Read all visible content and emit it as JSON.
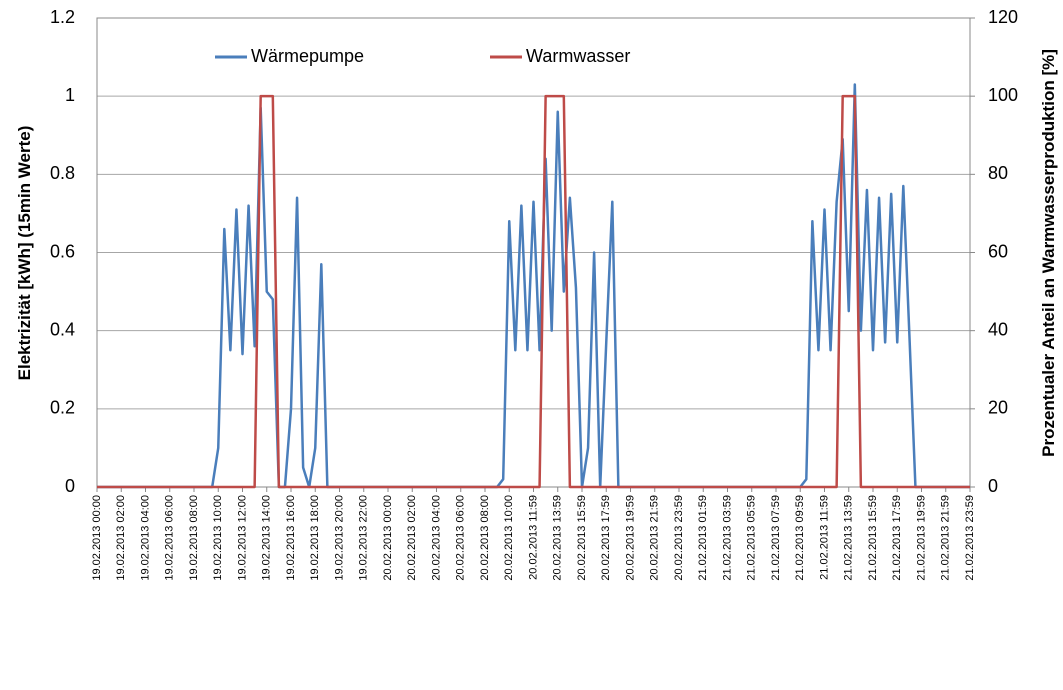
{
  "chart_data": {
    "type": "line",
    "y_label": "Elektrizität    [kWh]  (15min Werte)",
    "y2_label": "Prozentualer Anteil an Warmwasserproduktion   [%]",
    "categories": [
      "19.02.2013 00:00",
      null,
      null,
      null,
      "19.02.2013 02:00",
      null,
      null,
      null,
      "19.02.2013 04:00",
      null,
      null,
      null,
      "19.02.2013 06:00",
      null,
      null,
      null,
      "19.02.2013 08:00",
      null,
      null,
      null,
      "19.02.2013 10:00",
      null,
      null,
      null,
      "19.02.2013 12:00",
      null,
      null,
      null,
      "19.02.2013 14:00",
      null,
      null,
      null,
      "19.02.2013 16:00",
      null,
      null,
      null,
      "19.02.2013 18:00",
      null,
      null,
      null,
      "19.02.2013 20:00",
      null,
      null,
      null,
      "19.02.2013 22:00",
      null,
      null,
      null,
      "20.02.2013 00:00",
      null,
      null,
      null,
      "20.02.2013 02:00",
      null,
      null,
      null,
      "20.02.2013 04:00",
      null,
      null,
      null,
      "20.02.2013 06:00",
      null,
      null,
      null,
      "20.02.2013 08:00",
      null,
      null,
      null,
      "20.02.2013 10:00",
      null,
      null,
      null,
      "20.02.2013 11:59",
      null,
      null,
      null,
      "20.02.2013 13:59",
      null,
      null,
      null,
      "20.02.2013 15:59",
      null,
      null,
      null,
      "20.02.2013 17:59",
      null,
      null,
      null,
      "20.02.2013 19:59",
      null,
      null,
      null,
      "20.02.2013 21:59",
      null,
      null,
      null,
      "20.02.2013 23:59",
      null,
      null,
      null,
      "21.02.2013 01:59",
      null,
      null,
      null,
      "21.02.2013 03:59",
      null,
      null,
      null,
      "21.02.2013 05:59",
      null,
      null,
      null,
      "21.02.2013 07:59",
      null,
      null,
      null,
      "21.02.2013 09:59",
      null,
      null,
      null,
      "21.02.2013 11:59",
      null,
      null,
      null,
      "21.02.2013 13:59",
      null,
      null,
      null,
      "21.02.2013 15:59",
      null,
      null,
      null,
      "21.02.2013 17:59",
      null,
      null,
      null,
      "21.02.2013 19:59",
      null,
      null,
      null,
      "21.02.2013 21:59",
      null,
      null,
      null,
      "21.02.2013 23:59"
    ],
    "series": [
      {
        "name": "Wärmepumpe",
        "color": "#4a7ebb",
        "values": [
          0,
          0,
          0,
          0,
          0,
          0,
          0,
          0,
          0,
          0,
          0,
          0,
          0,
          0,
          0,
          0,
          0,
          0,
          0,
          0,
          0.1,
          0.66,
          0.35,
          0.71,
          0.34,
          0.72,
          0.36,
          0.97,
          0.5,
          0.48,
          0,
          0,
          0.2,
          0.74,
          0.05,
          0,
          0.1,
          0.57,
          0,
          0,
          0,
          0,
          0,
          0,
          0,
          0,
          0,
          0,
          0,
          0,
          0,
          0,
          0,
          0,
          0,
          0,
          0,
          0,
          0,
          0,
          0,
          0,
          0,
          0,
          0,
          0,
          0,
          0.02,
          0.68,
          0.35,
          0.72,
          0.35,
          0.73,
          0.35,
          0.84,
          0.4,
          0.96,
          0.5,
          0.74,
          0.51,
          0,
          0.1,
          0.6,
          0,
          0.37,
          0.73,
          0,
          0,
          0,
          0,
          0,
          0,
          0,
          0,
          0,
          0,
          0,
          0,
          0,
          0,
          0,
          0,
          0,
          0,
          0,
          0,
          0,
          0,
          0,
          0,
          0,
          0,
          0,
          0,
          0,
          0,
          0,
          0.02,
          0.68,
          0.35,
          0.71,
          0.35,
          0.73,
          0.89,
          0.45,
          1.03,
          0.4,
          0.76,
          0.35,
          0.74,
          0.37,
          0.75,
          0.37,
          0.77,
          0.39,
          0,
          0,
          0,
          0,
          0,
          0,
          0,
          0,
          0,
          0
        ]
      },
      {
        "name": "Warmwasser",
        "color": "#be4b48",
        "axis": "y2",
        "values": [
          0,
          0,
          0,
          0,
          0,
          0,
          0,
          0,
          0,
          0,
          0,
          0,
          0,
          0,
          0,
          0,
          0,
          0,
          0,
          0,
          0,
          0,
          0,
          0,
          0,
          0,
          0,
          100,
          100,
          100,
          0,
          0,
          0,
          0,
          0,
          0,
          0,
          0,
          0,
          0,
          0,
          0,
          0,
          0,
          0,
          0,
          0,
          0,
          0,
          0,
          0,
          0,
          0,
          0,
          0,
          0,
          0,
          0,
          0,
          0,
          0,
          0,
          0,
          0,
          0,
          0,
          0,
          0,
          0,
          0,
          0,
          0,
          0,
          0,
          100,
          100,
          100,
          100,
          0,
          0,
          0,
          0,
          0,
          0,
          0,
          0,
          0,
          0,
          0,
          0,
          0,
          0,
          0,
          0,
          0,
          0,
          0,
          0,
          0,
          0,
          0,
          0,
          0,
          0,
          0,
          0,
          0,
          0,
          0,
          0,
          0,
          0,
          0,
          0,
          0,
          0,
          0,
          0,
          0,
          0,
          0,
          0,
          0,
          100,
          100,
          100,
          0,
          0,
          0,
          0,
          0,
          0,
          0,
          0,
          0,
          0,
          0,
          0,
          0,
          0,
          0,
          0,
          0,
          0,
          0
        ]
      }
    ],
    "ylim": [
      0,
      1.2
    ],
    "yticks": [
      0,
      0.2,
      0.4,
      0.6,
      0.8,
      1,
      1.2
    ],
    "y2lim": [
      0,
      120
    ],
    "y2ticks": [
      0,
      20,
      40,
      60,
      80,
      100,
      120
    ],
    "grid": true
  }
}
